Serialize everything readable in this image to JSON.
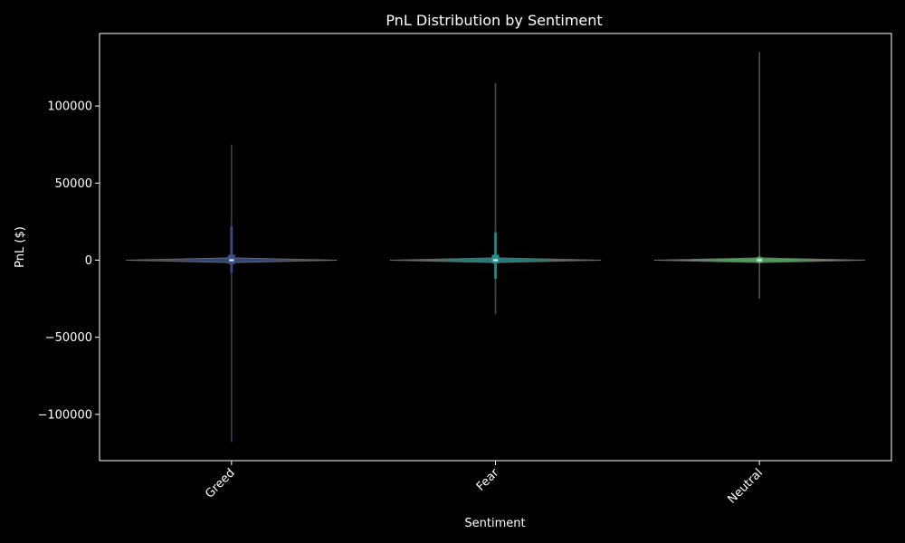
{
  "chart_data": {
    "type": "violin",
    "title": "PnL Distribution by Sentiment",
    "xlabel": "Sentiment",
    "ylabel": "PnL ($)",
    "ylim": [
      -130000,
      147000
    ],
    "yticks": [
      -100000,
      -50000,
      0,
      50000,
      100000
    ],
    "ytick_labels": [
      "−100000",
      "−50000",
      "0",
      "50000",
      "100000"
    ],
    "categories": [
      "Greed",
      "Fear",
      "Neutral"
    ],
    "xtick_rotation": 45,
    "background": "#000000",
    "axis_color": "#ffffff",
    "whisker_color": "#555555",
    "series": [
      {
        "category": "Greed",
        "color": "#3b4f8a",
        "min": -118000,
        "q1": -150,
        "median": 0,
        "q3": 300,
        "max": 75000,
        "box_low": -2500,
        "box_high": 3500,
        "spike_low": -8000,
        "spike_high": 22000
      },
      {
        "category": "Fear",
        "color": "#27908d",
        "min": -35000,
        "q1": -150,
        "median": 0,
        "q3": 300,
        "max": 115000,
        "box_low": -2000,
        "box_high": 3500,
        "spike_low": -12000,
        "spike_high": 18000
      },
      {
        "category": "Neutral",
        "color": "#5bb86a",
        "min": -25000,
        "q1": -100,
        "median": 0,
        "q3": 200,
        "max": 135000,
        "box_low": -1200,
        "box_high": 1800,
        "spike_low": -2000,
        "spike_high": 2500
      }
    ]
  }
}
